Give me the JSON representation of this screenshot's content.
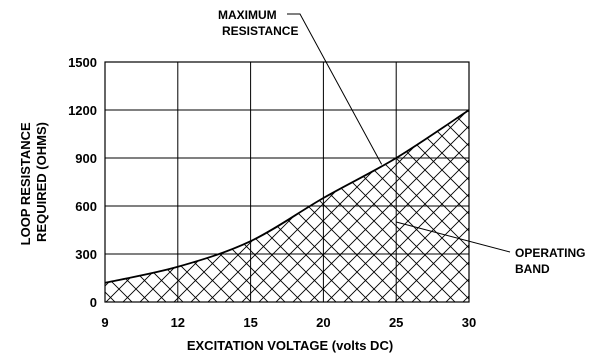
{
  "chart_data": {
    "type": "area",
    "title": "",
    "xlabel": "EXCITATION VOLTAGE (volts DC)",
    "ylabel_lines": [
      "LOOP RESISTANCE",
      "REQUIRED (OHMS)"
    ],
    "x_ticks": [
      9,
      12,
      15,
      20,
      25,
      30
    ],
    "y_ticks": [
      0,
      300,
      600,
      900,
      1200,
      1500
    ],
    "xlim": [
      9,
      30
    ],
    "ylim": [
      0,
      1500
    ],
    "grid": true,
    "series": [
      {
        "x": [
          9,
          12,
          15,
          20,
          25,
          30
        ],
        "y": [
          120,
          220,
          380,
          650,
          900,
          1200
        ]
      }
    ],
    "shaded_region": "below the maximum resistance curve (operating band)",
    "annotations": [
      {
        "lines": [
          "MAXIMUM",
          "RESISTANCE"
        ],
        "points_to": {
          "x": 24,
          "y": 860
        }
      },
      {
        "lines": [
          "OPERATING",
          "BAND"
        ],
        "points_to": {
          "x": 25,
          "y": 500
        }
      }
    ],
    "colors": {
      "line": "#000000",
      "hatch": "#000000",
      "background": "#ffffff"
    }
  }
}
